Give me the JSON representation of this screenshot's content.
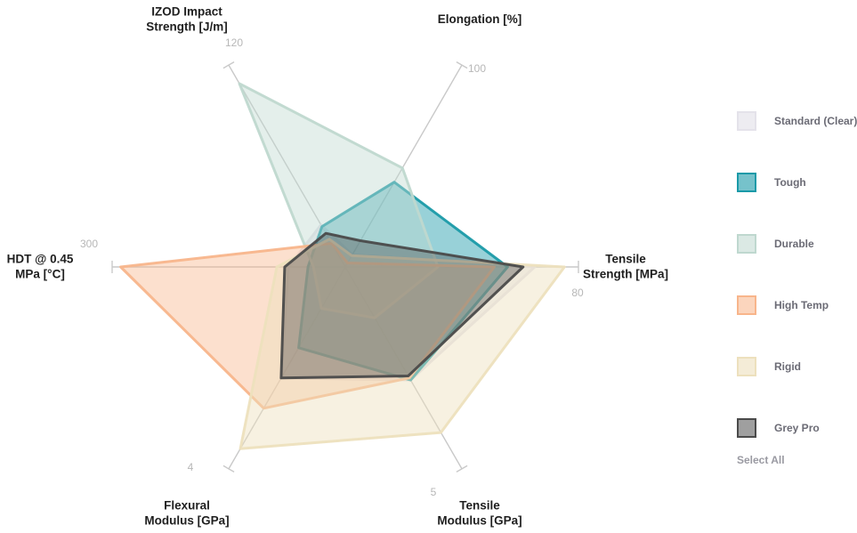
{
  "chart_data": {
    "type": "radar",
    "axes": [
      {
        "key": "tensile_strength",
        "label_lines": [
          "Tensile",
          "Strength [MPa]"
        ],
        "max_label": "80",
        "max": 80
      },
      {
        "key": "elongation",
        "label_lines": [
          "Elongation [%]"
        ],
        "max_label": "100",
        "max": 100
      },
      {
        "key": "izod",
        "label_lines": [
          "IZOD Impact",
          "Strength [J/m]"
        ],
        "max_label": "120",
        "max": 120
      },
      {
        "key": "hdt",
        "label_lines": [
          "HDT @ 0.45",
          "MPa [°C]"
        ],
        "max_label": "300",
        "max": 300
      },
      {
        "key": "flexural_modulus",
        "label_lines": [
          "Flexural",
          "Modulus [GPa]"
        ],
        "max_label": "4",
        "max": 4
      },
      {
        "key": "tensile_modulus",
        "label_lines": [
          "Tensile",
          "Modulus [GPa]"
        ],
        "max_label": "5",
        "max": 5
      }
    ],
    "series": [
      {
        "name": "Standard (Clear)",
        "color": "#e4e2ea",
        "fill_opacity": 0.5,
        "values": [
          65,
          6,
          25,
          73,
          2.2,
          2.8
        ]
      },
      {
        "name": "Tough",
        "color": "#1a9aa8",
        "fill_opacity": 0.45,
        "values": [
          55.7,
          42,
          24,
          48,
          1.6,
          2.8
        ]
      },
      {
        "name": "Durable",
        "color": "#bfd8cf",
        "fill_opacity": 0.42,
        "values": [
          31.8,
          49,
          109,
          41,
          0.82,
          1.26
        ]
      },
      {
        "name": "High Temp",
        "color": "#f8b58b",
        "fill_opacity": 0.42,
        "values": [
          51.1,
          2,
          14,
          289,
          2.8,
          2.75
        ]
      },
      {
        "name": "Rigid",
        "color": "#ede0bd",
        "fill_opacity": 0.45,
        "values": [
          75.2,
          5.6,
          16.5,
          88,
          3.6,
          4.1
        ]
      },
      {
        "name": "Grey Pro",
        "color": "#4a4a4a",
        "fill_opacity": 0.38,
        "values": [
          61,
          13,
          20,
          78,
          2.2,
          2.7
        ]
      }
    ],
    "legend_position": "right",
    "grid": false
  },
  "legend": {
    "select_all_label": "Select All"
  }
}
